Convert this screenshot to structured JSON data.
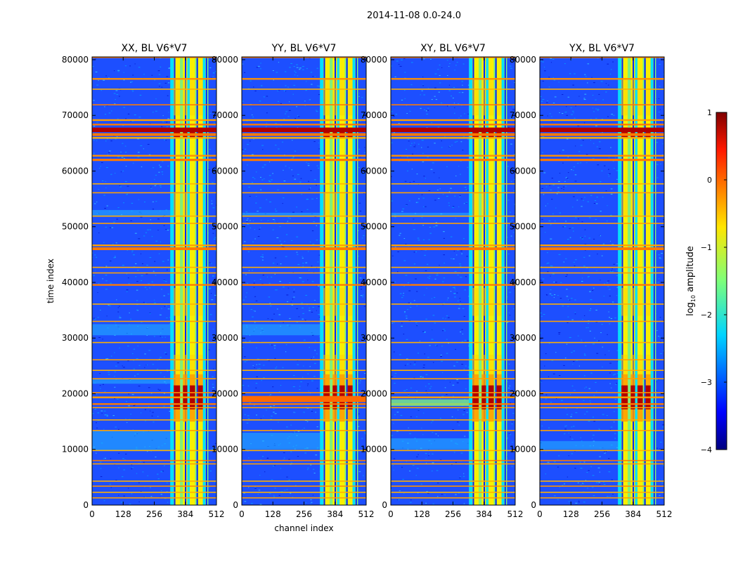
{
  "figure_title": "2014-11-08 0.0-24.0",
  "colors": {
    "blue_bg": "#1d4fff",
    "stripe_orange": "#ff7a00",
    "stripe_dark_red": "#b00000",
    "band_yellow": "#f8f000",
    "band_green": "#7ff07a",
    "band_cyan": "#00e0ff"
  },
  "chart_data": [
    {
      "type": "heatmap",
      "title": "XX, BL V6*V7",
      "xlabel": "",
      "ylabel": "time index",
      "xlim": [
        0,
        512
      ],
      "ylim": [
        0,
        80500
      ],
      "xticks": [
        "0",
        "128",
        "256",
        "384",
        "512"
      ],
      "yticks": [
        "0",
        "10000",
        "20000",
        "30000",
        "40000",
        "50000",
        "60000",
        "70000",
        "80000"
      ]
    },
    {
      "type": "heatmap",
      "title": "YY, BL V6*V7",
      "xlabel": "channel index",
      "ylabel": "",
      "xlim": [
        0,
        512
      ],
      "ylim": [
        0,
        80500
      ],
      "xticks": [
        "0",
        "128",
        "256",
        "384",
        "512"
      ],
      "yticks": [
        "0",
        "10000",
        "20000",
        "30000",
        "40000",
        "50000",
        "60000",
        "70000",
        "80000"
      ]
    },
    {
      "type": "heatmap",
      "title": "XY, BL V6*V7",
      "xlabel": "",
      "ylabel": "",
      "xlim": [
        0,
        512
      ],
      "ylim": [
        0,
        80500
      ],
      "xticks": [
        "0",
        "128",
        "256",
        "384",
        "512"
      ],
      "yticks": [
        "0",
        "10000",
        "20000",
        "30000",
        "40000",
        "50000",
        "60000",
        "70000",
        "80000"
      ]
    },
    {
      "type": "heatmap",
      "title": "YX, BL V6*V7",
      "xlabel": "",
      "ylabel": "",
      "xlim": [
        0,
        512
      ],
      "ylim": [
        0,
        80500
      ],
      "xticks": [
        "0",
        "128",
        "256",
        "384",
        "512"
      ],
      "yticks": [
        "0",
        "10000",
        "20000",
        "30000",
        "40000",
        "50000",
        "60000",
        "70000",
        "80000"
      ]
    }
  ],
  "colorbar": {
    "label_main": "log",
    "label_sub": "10",
    "label_rest": " amplitude",
    "range": [
      -4,
      1
    ],
    "ticks": [
      "1",
      "0",
      "−1",
      "−2",
      "−3",
      "−4"
    ],
    "stops": [
      {
        "v": 0.0,
        "c": "#00007f"
      },
      {
        "v": 0.11,
        "c": "#0000ff"
      },
      {
        "v": 0.34,
        "c": "#00d4ff"
      },
      {
        "v": 0.5,
        "c": "#7dff7a"
      },
      {
        "v": 0.66,
        "c": "#ffe600"
      },
      {
        "v": 0.89,
        "c": "#ff1800"
      },
      {
        "v": 1.0,
        "c": "#7f0000"
      }
    ]
  }
}
